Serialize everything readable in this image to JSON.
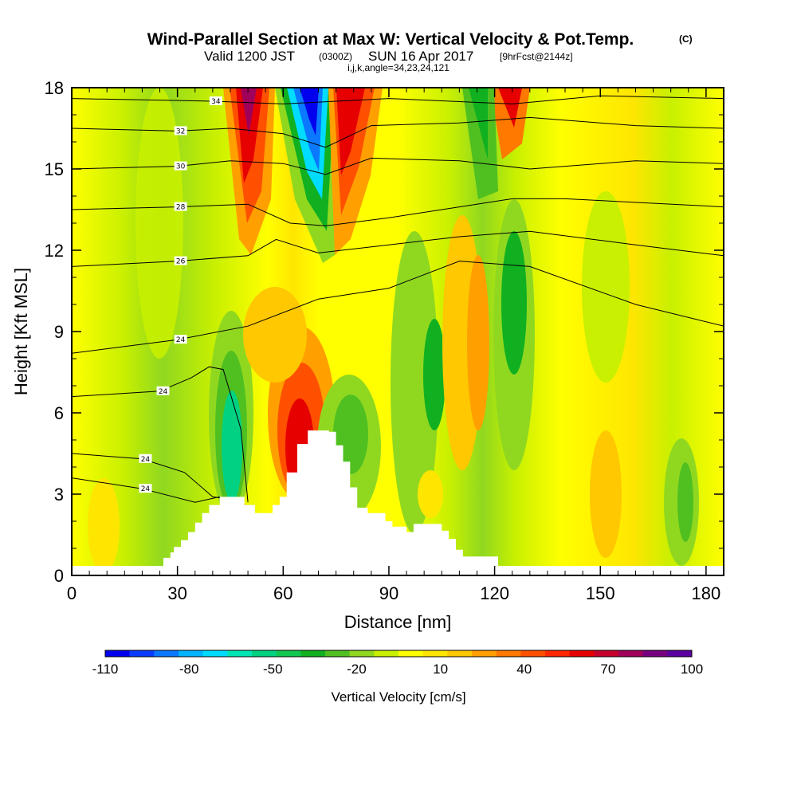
{
  "header": {
    "title": "Wind-Parallel Section at Max W: Vertical Velocity & Pot.Temp.",
    "copyright": "(C)",
    "valid_prefix": "Valid 1200 JST",
    "valid_utc": "(0300Z)",
    "valid_date": "SUN 16 Apr 2017",
    "forecast": "[9hrFcst@2144z]",
    "indices": "i,j,k,angle=34,23,24,121"
  },
  "chart_data": {
    "type": "heatmap",
    "xlabel": "Distance [nm]",
    "ylabel": "Height [Kft MSL]",
    "xlim": [
      0,
      185
    ],
    "ylim": [
      0,
      18
    ],
    "x_ticks": [
      "0",
      "30",
      "60",
      "90",
      "120",
      "150",
      "180"
    ],
    "y_ticks": [
      "0",
      "3",
      "6",
      "9",
      "12",
      "15",
      "18"
    ],
    "colorbar": {
      "label": "Vertical Velocity [cm/s]",
      "tick_labels": [
        "-110",
        "-80",
        "-50",
        "-20",
        "10",
        "40",
        "70",
        "100"
      ],
      "colors": [
        "#0000ee",
        "#0a3cff",
        "#0a78ff",
        "#00b4ff",
        "#00dcff",
        "#00e6b4",
        "#00d282",
        "#10c850",
        "#10b020",
        "#50c020",
        "#90d820",
        "#c8f000",
        "#ffff00",
        "#ffe600",
        "#ffc800",
        "#ffa000",
        "#ff7800",
        "#ff5000",
        "#ff2800",
        "#e60000",
        "#c8002d",
        "#a0005a",
        "#780080",
        "#5a00a0"
      ]
    },
    "terrain_top_kft": [
      [
        0,
        0.35
      ],
      [
        25,
        0.35
      ],
      [
        26,
        0.65
      ],
      [
        28,
        0.85
      ],
      [
        29,
        1.05
      ],
      [
        31,
        1.3
      ],
      [
        33,
        1.6
      ],
      [
        35,
        1.95
      ],
      [
        37,
        2.3
      ],
      [
        39,
        2.6
      ],
      [
        42,
        2.9
      ],
      [
        48,
        2.9
      ],
      [
        49,
        2.6
      ],
      [
        52,
        2.3
      ],
      [
        57,
        2.6
      ],
      [
        59,
        2.9
      ],
      [
        61,
        3.8
      ],
      [
        64,
        4.85
      ],
      [
        67,
        5.35
      ],
      [
        73,
        5.3
      ],
      [
        75,
        4.8
      ],
      [
        77,
        4.2
      ],
      [
        79,
        3.25
      ],
      [
        81,
        2.5
      ],
      [
        84,
        2.3
      ],
      [
        89,
        2.0
      ],
      [
        91,
        1.8
      ],
      [
        95,
        1.6
      ],
      [
        97,
        1.9
      ],
      [
        103,
        1.9
      ],
      [
        105,
        1.65
      ],
      [
        107,
        1.35
      ],
      [
        109,
        0.95
      ],
      [
        111,
        0.7
      ],
      [
        120,
        0.7
      ],
      [
        121,
        0.35
      ],
      [
        185,
        0.35
      ]
    ],
    "isentropes_K": [
      {
        "label": "24",
        "points": [
          [
            0,
            3.6
          ],
          [
            20,
            3.2
          ],
          [
            35,
            2.7
          ],
          [
            42,
            2.9
          ]
        ]
      },
      {
        "label": "24",
        "points": [
          [
            0,
            4.5
          ],
          [
            20,
            4.3
          ],
          [
            32,
            3.8
          ],
          [
            40,
            2.9
          ],
          [
            46,
            2.8
          ],
          [
            52,
            2.4
          ]
        ]
      },
      {
        "label": "24",
        "points": [
          [
            0,
            6.6
          ],
          [
            25,
            6.8
          ],
          [
            34,
            7.3
          ],
          [
            39,
            7.7
          ],
          [
            43,
            7.6
          ],
          [
            48,
            5.4
          ],
          [
            50,
            2.7
          ]
        ]
      },
      {
        "label": "24",
        "points": [
          [
            0,
            8.2
          ],
          [
            30,
            8.7
          ],
          [
            50,
            9.2
          ],
          [
            70,
            10.2
          ],
          [
            90,
            10.6
          ],
          [
            110,
            11.6
          ],
          [
            130,
            11.4
          ],
          [
            160,
            10.0
          ],
          [
            185,
            9.2
          ]
        ]
      },
      {
        "label": "26",
        "points": [
          [
            0,
            11.4
          ],
          [
            30,
            11.6
          ],
          [
            50,
            11.8
          ],
          [
            58,
            12.4
          ],
          [
            70,
            11.9
          ],
          [
            90,
            12.2
          ],
          [
            110,
            12.5
          ],
          [
            130,
            12.7
          ],
          [
            160,
            12.2
          ],
          [
            185,
            11.8
          ]
        ]
      },
      {
        "label": "28",
        "points": [
          [
            0,
            13.5
          ],
          [
            30,
            13.6
          ],
          [
            50,
            13.7
          ],
          [
            62,
            13.0
          ],
          [
            72,
            12.9
          ],
          [
            90,
            13.2
          ],
          [
            110,
            13.6
          ],
          [
            125,
            13.9
          ],
          [
            140,
            13.9
          ],
          [
            185,
            13.6
          ]
        ]
      },
      {
        "label": "30",
        "points": [
          [
            0,
            15.0
          ],
          [
            30,
            15.1
          ],
          [
            45,
            15.3
          ],
          [
            60,
            15.2
          ],
          [
            72,
            14.8
          ],
          [
            85,
            15.4
          ],
          [
            110,
            15.3
          ],
          [
            130,
            15.0
          ],
          [
            160,
            15.3
          ],
          [
            185,
            15.2
          ]
        ]
      },
      {
        "label": "32",
        "points": [
          [
            0,
            16.5
          ],
          [
            30,
            16.4
          ],
          [
            45,
            16.5
          ],
          [
            60,
            16.3
          ],
          [
            72,
            15.8
          ],
          [
            85,
            16.6
          ],
          [
            110,
            16.7
          ],
          [
            130,
            16.9
          ],
          [
            160,
            16.6
          ],
          [
            185,
            16.5
          ]
        ]
      },
      {
        "label": "34",
        "points": [
          [
            0,
            17.6
          ],
          [
            40,
            17.5
          ],
          [
            60,
            17.4
          ],
          [
            90,
            17.6
          ],
          [
            125,
            17.4
          ],
          [
            150,
            17.7
          ],
          [
            185,
            17.6
          ]
        ]
      }
    ]
  }
}
